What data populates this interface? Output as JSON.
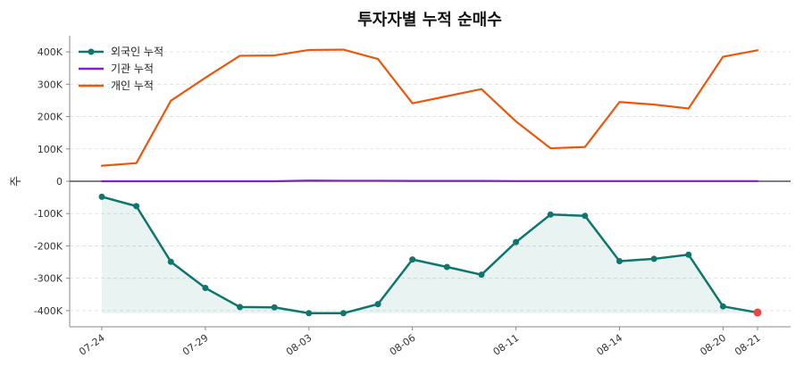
{
  "chart_data": {
    "type": "line",
    "title": "투자자별 누적 순매수",
    "ylabel": "주",
    "xlabel": "",
    "ylim": [
      -450000,
      450000
    ],
    "yticks": [
      400000,
      300000,
      200000,
      100000,
      0,
      -100000,
      -200000,
      -300000,
      -400000
    ],
    "ytick_labels": [
      "400K",
      "300K",
      "200K",
      "100K",
      "0",
      "-100K",
      "-200K",
      "-300K",
      "-400K"
    ],
    "x": [
      "07-24",
      "07-25",
      "07-28",
      "07-29",
      "07-30",
      "07-31",
      "08-03",
      "08-04",
      "08-05",
      "08-06",
      "08-07",
      "08-08",
      "08-11",
      "08-12",
      "08-13",
      "08-14",
      "08-15",
      "08-18",
      "08-20",
      "08-21"
    ],
    "xtick_labels": [
      "07-24",
      "07-29",
      "08-03",
      "08-06",
      "08-11",
      "08-14",
      "08-20",
      "08-21"
    ],
    "grid": true,
    "legend_position": "top-left",
    "series": [
      {
        "name": "외국인 누적",
        "color": "#0f766e",
        "markers": true,
        "fill": true,
        "values": [
          -48000,
          -77000,
          -249000,
          -330000,
          -389000,
          -390000,
          -408000,
          -408000,
          -380000,
          -242000,
          -265000,
          -289000,
          -188000,
          -103000,
          -107000,
          -247000,
          -240000,
          -227000,
          -387000,
          -406000
        ]
      },
      {
        "name": "기관 누적",
        "color": "#7e22ce",
        "markers": false,
        "fill": false,
        "values": [
          0,
          0,
          0,
          0,
          0,
          0,
          2000,
          1500,
          1500,
          1000,
          1000,
          1000,
          500,
          500,
          500,
          500,
          500,
          500,
          500,
          500
        ]
      },
      {
        "name": "개인 누적",
        "color": "#ea580c",
        "markers": false,
        "fill": false,
        "values": [
          48000,
          56000,
          249000,
          320000,
          388000,
          389000,
          406000,
          407000,
          378000,
          241000,
          263000,
          285000,
          185000,
          102000,
          106000,
          245000,
          237000,
          225000,
          385000,
          405000
        ]
      }
    ],
    "highlight_last_point_color": "#ef4444"
  }
}
